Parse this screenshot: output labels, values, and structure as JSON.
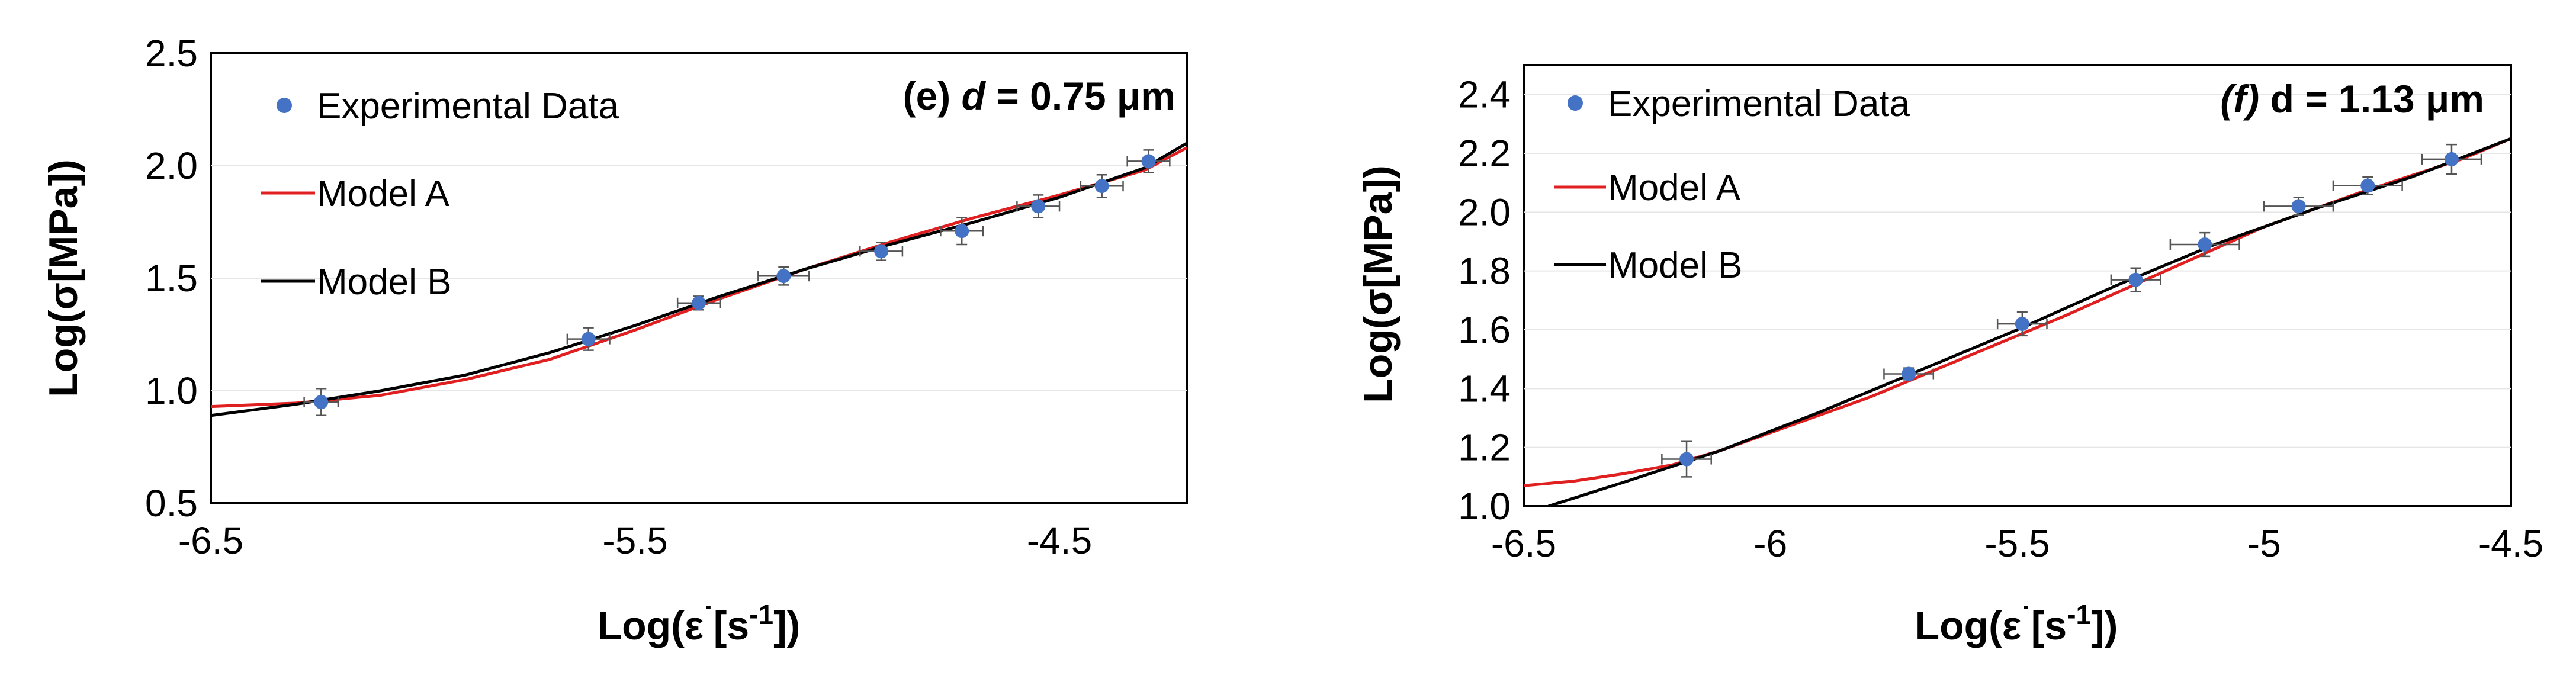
{
  "chart_data": [
    {
      "type": "scatter",
      "panel_label": "(e) ",
      "panel_var": "d",
      "panel_value": " = 0.75 μm",
      "xlabel": "Log(ε˙[s-1])",
      "xlabel_parts": {
        "prefix": "Log(ε",
        "dot": "˙",
        "mid": "[s",
        "sup": "-1",
        "suffix": "])"
      },
      "ylabel": "Log(σ[MPa])",
      "xlim": [
        -6.5,
        -4.2
      ],
      "ylim": [
        0.5,
        2.5
      ],
      "xticks": [
        -6.5,
        -5.5,
        -4.5
      ],
      "xtick_labels": [
        "-6.5",
        "-5.5",
        "-4.5"
      ],
      "yticks": [
        0.5,
        1.0,
        1.5,
        2.0,
        2.5
      ],
      "ytick_labels": [
        "0.5",
        "1.0",
        "1.5",
        "2.0",
        "2.5"
      ],
      "legend": {
        "position": "top-left",
        "entries": [
          "Experimental Data",
          "Model A",
          "Model B"
        ]
      },
      "series": [
        {
          "name": "Experimental Data",
          "kind": "points",
          "color": "#4472C4",
          "x": [
            -6.24,
            -5.61,
            -5.35,
            -5.15,
            -4.92,
            -4.73,
            -4.55,
            -4.4,
            -4.29
          ],
          "y": [
            0.95,
            1.23,
            1.39,
            1.51,
            1.62,
            1.71,
            1.82,
            1.91,
            2.02
          ],
          "x_err": [
            0.04,
            0.05,
            0.05,
            0.06,
            0.05,
            0.05,
            0.05,
            0.05,
            0.05
          ],
          "y_err": [
            0.06,
            0.05,
            0.03,
            0.04,
            0.04,
            0.06,
            0.05,
            0.05,
            0.05
          ]
        },
        {
          "name": "Model A",
          "kind": "line",
          "color": "#E02020",
          "x": [
            -6.5,
            -6.3,
            -6.1,
            -5.9,
            -5.7,
            -5.5,
            -5.3,
            -5.1,
            -4.9,
            -4.7,
            -4.5,
            -4.3,
            -4.2
          ],
          "y": [
            0.93,
            0.945,
            0.98,
            1.05,
            1.14,
            1.27,
            1.41,
            1.54,
            1.66,
            1.77,
            1.87,
            1.98,
            2.08
          ]
        },
        {
          "name": "Model B",
          "kind": "line",
          "color": "#000000",
          "x": [
            -6.5,
            -6.3,
            -6.1,
            -5.9,
            -5.7,
            -5.5,
            -5.3,
            -5.1,
            -4.9,
            -4.7,
            -4.5,
            -4.3,
            -4.2
          ],
          "y": [
            0.89,
            0.94,
            1.0,
            1.07,
            1.17,
            1.29,
            1.42,
            1.54,
            1.65,
            1.75,
            1.86,
            1.99,
            2.1
          ]
        }
      ]
    },
    {
      "type": "scatter",
      "panel_label": "(f)",
      "panel_var": "",
      "panel_value": " d = 1.13 μm",
      "xlabel": "Log(ε˙[s-1])",
      "xlabel_parts": {
        "prefix": "Log(ε",
        "dot": "˙",
        "mid": "[s",
        "sup": "-1",
        "suffix": "])"
      },
      "ylabel": "Log(σ[MPa])",
      "xlim": [
        -6.5,
        -4.5
      ],
      "ylim": [
        1.0,
        2.5
      ],
      "xticks": [
        -6.5,
        -6.0,
        -5.5,
        -5.0,
        -4.5
      ],
      "xtick_labels": [
        "-6.5",
        "-6",
        "-5.5",
        "-5",
        "-4.5"
      ],
      "yticks": [
        1.0,
        1.2,
        1.4,
        1.6,
        1.8,
        2.0,
        2.2,
        2.4
      ],
      "ytick_labels": [
        "1.0",
        "1.2",
        "1.4",
        "1.6",
        "1.8",
        "2.0",
        "2.2",
        "2.4"
      ],
      "legend": {
        "position": "top-left",
        "entries": [
          "Experimental Data",
          "Model A",
          "Model B"
        ]
      },
      "series": [
        {
          "name": "Experimental Data",
          "kind": "points",
          "color": "#4472C4",
          "x": [
            -6.17,
            -5.72,
            -5.49,
            -5.26,
            -5.12,
            -4.93,
            -4.79,
            -4.62
          ],
          "y": [
            1.16,
            1.45,
            1.62,
            1.77,
            1.89,
            2.02,
            2.09,
            2.18
          ],
          "x_err": [
            0.05,
            0.05,
            0.05,
            0.05,
            0.07,
            0.07,
            0.07,
            0.06
          ],
          "y_err": [
            0.06,
            0.02,
            0.04,
            0.04,
            0.04,
            0.03,
            0.03,
            0.05
          ]
        },
        {
          "name": "Model A",
          "kind": "line",
          "color": "#E02020",
          "x": [
            -6.5,
            -6.4,
            -6.3,
            -6.2,
            -6.1,
            -6.0,
            -5.8,
            -5.6,
            -5.4,
            -5.2,
            -5.0,
            -4.8,
            -4.6,
            -4.5
          ],
          "y": [
            1.07,
            1.085,
            1.11,
            1.14,
            1.19,
            1.25,
            1.37,
            1.51,
            1.65,
            1.8,
            1.95,
            2.07,
            2.18,
            2.25
          ]
        },
        {
          "name": "Model B",
          "kind": "line",
          "color": "#000000",
          "x": [
            -6.45,
            -6.3,
            -6.1,
            -5.9,
            -5.7,
            -5.5,
            -5.3,
            -5.1,
            -4.9,
            -4.7,
            -4.5
          ],
          "y": [
            1.0,
            1.08,
            1.19,
            1.32,
            1.46,
            1.6,
            1.75,
            1.89,
            2.01,
            2.12,
            2.25
          ]
        }
      ]
    }
  ]
}
